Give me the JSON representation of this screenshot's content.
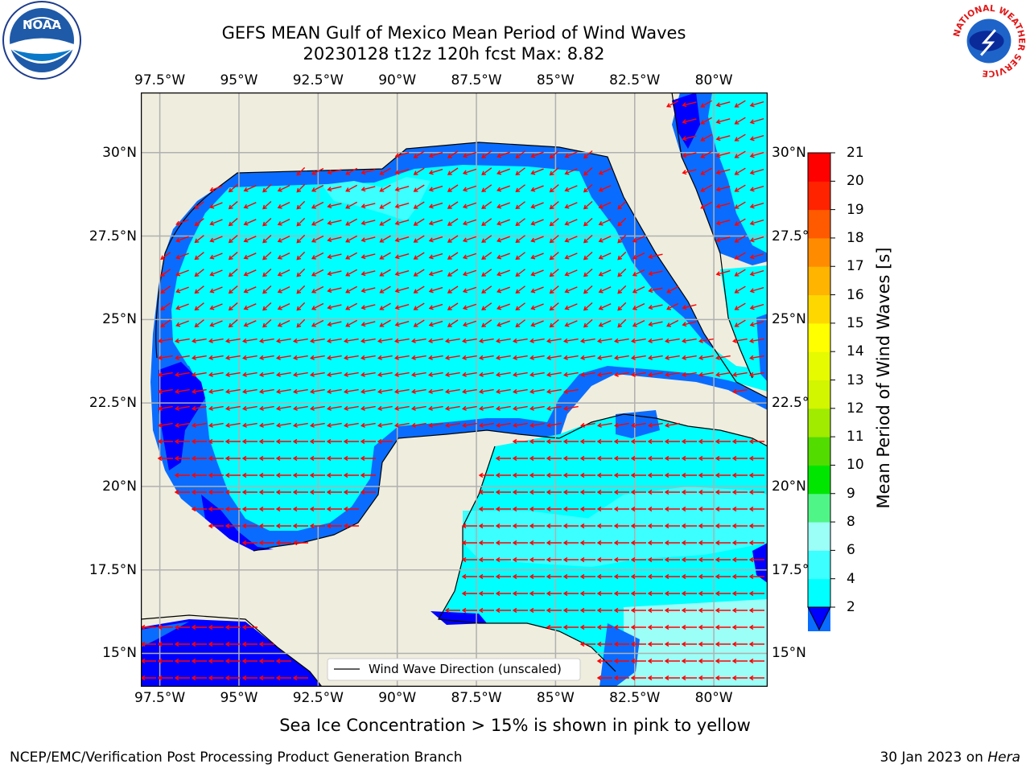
{
  "title": {
    "line1": "GEFS MEAN Gulf of Mexico Mean Period of Wind Waves",
    "line2": "20230128 t12z 120h fcst   Max: 8.82"
  },
  "axes": {
    "lon_ticks": [
      "97.5°W",
      "95°W",
      "92.5°W",
      "90°W",
      "87.5°W",
      "85°W",
      "82.5°W",
      "80°W"
    ],
    "lat_ticks_left": [
      "30°N",
      "27.5°N",
      "25°N",
      "22.5°N",
      "20°N",
      "17.5°N",
      "15°N"
    ],
    "lat_ticks_right": [
      "30°N",
      "27.5°",
      "25°N",
      "22.5°",
      "20°N",
      "17.5°",
      "15°N"
    ],
    "lon_range": [
      -98.1,
      -78.3
    ],
    "lat_range": [
      14.0,
      31.8
    ]
  },
  "legend": {
    "label": "Wind Wave Direction (unscaled)"
  },
  "colorbar": {
    "title": "Mean Period of Wind Waves [s]",
    "ticks": [
      "2",
      "4",
      "6",
      "8",
      "9",
      "10",
      "11",
      "12",
      "13",
      "14",
      "15",
      "16",
      "17",
      "18",
      "19",
      "20",
      "21"
    ],
    "colors": [
      "#0000ff",
      "#0a6cff",
      "#00ffff",
      "#3cffff",
      "#9cfff7",
      "#50f587",
      "#00e600",
      "#52dc00",
      "#a0eb00",
      "#d2f500",
      "#e6fa00",
      "#ffff00",
      "#ffd700",
      "#ffb400",
      "#ff8c00",
      "#ff5a00",
      "#ff2300",
      "#ff0000"
    ]
  },
  "ice_note": "Sea Ice Concentration > 15% is shown in pink to yellow",
  "footer": {
    "left": "NCEP/EMC/Verification Post Processing Product Generation Branch",
    "date": "30 Jan 2023 on ",
    "host": "Hera"
  },
  "logos": {
    "left": {
      "name": "noaa-logo",
      "text": "NOAA",
      "ring_text": "NATIONAL OCEANIC AND ATMOSPHERIC ADMINISTRATION · U.S. DEPARTMENT OF COMMERCE"
    },
    "right": {
      "name": "nws-logo",
      "ring_text": "NATIONAL WEATHER SERVICE"
    }
  },
  "colors": {
    "land": "#efedde",
    "grid": "#b0b0b0",
    "arrow": "#ff0000"
  }
}
